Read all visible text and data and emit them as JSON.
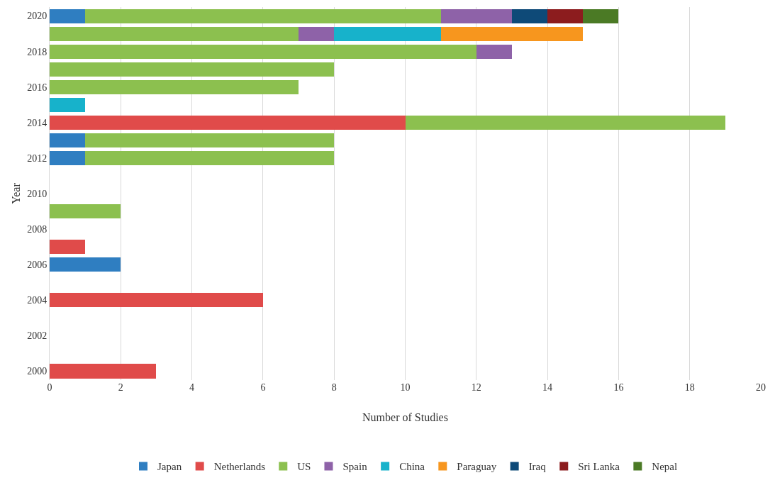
{
  "chart_data": {
    "type": "bar",
    "orientation": "horizontal",
    "stacked": true,
    "xlabel": "Number of Studies",
    "ylabel": "Year",
    "categories": [
      "2020",
      null,
      "2018",
      null,
      "2016",
      null,
      "2014",
      null,
      "2012",
      null,
      "2010",
      null,
      "2008",
      null,
      "2006",
      null,
      "2004",
      null,
      "2002",
      null,
      "2000"
    ],
    "series": [
      {
        "name": "Japan",
        "color": "#2f7ec1",
        "values": [
          1,
          null,
          null,
          null,
          null,
          null,
          null,
          1,
          1,
          null,
          null,
          null,
          null,
          null,
          2,
          null,
          null,
          null,
          null,
          null,
          null
        ]
      },
      {
        "name": "Netherlands",
        "color": "#e04b4a",
        "values": [
          null,
          null,
          null,
          null,
          null,
          null,
          10,
          null,
          null,
          null,
          null,
          null,
          null,
          1,
          null,
          null,
          6,
          null,
          null,
          null,
          3
        ]
      },
      {
        "name": "US",
        "color": "#8cc04f",
        "values": [
          10,
          7,
          12,
          8,
          7,
          null,
          9,
          7,
          7,
          null,
          null,
          2,
          null,
          null,
          null,
          null,
          null,
          null,
          null,
          null,
          null
        ]
      },
      {
        "name": "Spain",
        "color": "#8e62a8",
        "values": [
          2,
          1,
          1,
          null,
          null,
          null,
          null,
          null,
          null,
          null,
          null,
          null,
          null,
          null,
          null,
          null,
          null,
          null,
          null,
          null,
          null
        ]
      },
      {
        "name": "China",
        "color": "#17b2cb",
        "values": [
          null,
          3,
          null,
          null,
          null,
          1,
          null,
          null,
          null,
          null,
          null,
          null,
          null,
          null,
          null,
          null,
          null,
          null,
          null,
          null,
          null
        ]
      },
      {
        "name": "Paraguay",
        "color": "#f7961e",
        "values": [
          null,
          4,
          null,
          null,
          null,
          null,
          null,
          null,
          null,
          null,
          null,
          null,
          null,
          null,
          null,
          null,
          null,
          null,
          null,
          null,
          null
        ]
      },
      {
        "name": "Iraq",
        "color": "#0e4a78",
        "values": [
          1,
          null,
          null,
          null,
          null,
          null,
          null,
          null,
          null,
          null,
          null,
          null,
          null,
          null,
          null,
          null,
          null,
          null,
          null,
          null,
          null
        ]
      },
      {
        "name": "Sri Lanka",
        "color": "#8c1c1e",
        "values": [
          1,
          null,
          null,
          null,
          null,
          null,
          null,
          null,
          null,
          null,
          null,
          null,
          null,
          null,
          null,
          null,
          null,
          null,
          null,
          null,
          null
        ]
      },
      {
        "name": "Nepal",
        "color": "#4b7a25",
        "values": [
          1,
          null,
          null,
          null,
          null,
          null,
          null,
          null,
          null,
          null,
          null,
          null,
          null,
          null,
          null,
          null,
          null,
          null,
          null,
          null,
          null
        ]
      }
    ],
    "xlim": [
      0,
      20
    ],
    "xticks": [
      0,
      2,
      4,
      6,
      8,
      10,
      12,
      14,
      16,
      18,
      20
    ],
    "grid": "x",
    "legend": "bottom"
  }
}
